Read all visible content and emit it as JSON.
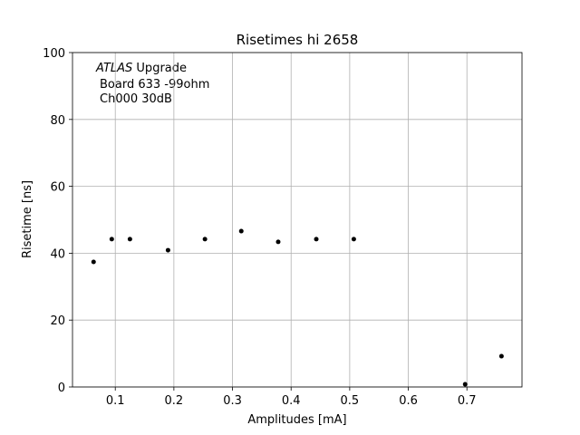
{
  "chart_data": {
    "type": "scatter",
    "title": "Risetimes hi 2658",
    "xlabel": "Amplitudes [mA]",
    "ylabel": "Risetime [ns]",
    "annotation": {
      "italic": "ATLAS",
      "first": "Upgrade",
      "lines": [
        "Board 633 -99ohm",
        "Ch000 30dB"
      ]
    },
    "x": [
      0.063,
      0.094,
      0.125,
      0.19,
      0.253,
      0.315,
      0.378,
      0.443,
      0.507,
      0.697,
      0.759
    ],
    "values": [
      37.4,
      44.2,
      44.2,
      40.9,
      44.2,
      46.6,
      43.4,
      44.2,
      44.2,
      0.8,
      9.2
    ],
    "color": "#000000",
    "xlim": [
      0.027,
      0.794
    ],
    "xticks": [
      0.1,
      0.2,
      0.3,
      0.4,
      0.5,
      0.6,
      0.7
    ],
    "ylim": [
      0,
      100
    ],
    "yticks": [
      0,
      20,
      40,
      60,
      80,
      100
    ],
    "grid": true
  }
}
